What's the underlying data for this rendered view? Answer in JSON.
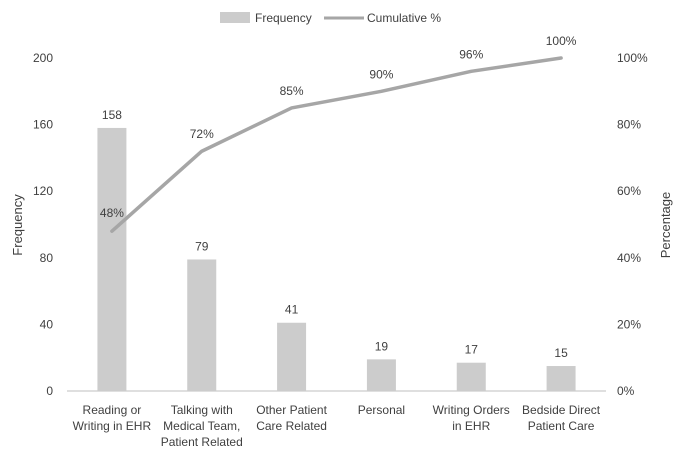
{
  "chart_data": {
    "type": "bar",
    "categories": [
      [
        "Reading or",
        "Writing in EHR"
      ],
      [
        "Talking with",
        "Medical Team,",
        "Patient Related"
      ],
      [
        "Other Patient",
        "Care Related"
      ],
      [
        "Personal"
      ],
      [
        "Writing Orders",
        "in EHR"
      ],
      [
        "Bedside Direct",
        "Patient Care"
      ]
    ],
    "series": [
      {
        "name": "Frequency",
        "type": "bar",
        "axis": "left",
        "color": "#cccccc",
        "values": [
          158,
          79,
          41,
          19,
          17,
          15
        ],
        "labels": [
          "158",
          "79",
          "41",
          "19",
          "17",
          "15"
        ]
      },
      {
        "name": "Cumulative %",
        "type": "line",
        "axis": "right",
        "color": "#a6a6a6",
        "values": [
          48,
          72,
          85,
          90,
          96,
          100
        ],
        "labels": [
          "48%",
          "72%",
          "85%",
          "90%",
          "96%",
          "100%"
        ]
      }
    ],
    "ylabel": "Frequency",
    "y2label": "Percentage",
    "ylim": [
      0,
      200
    ],
    "y2lim": [
      0,
      100
    ],
    "yticks": [
      "0",
      "40",
      "80",
      "120",
      "160",
      "200"
    ],
    "y2ticks": [
      "0%",
      "20%",
      "40%",
      "60%",
      "80%",
      "100%"
    ],
    "grid": false,
    "legend": "top"
  }
}
